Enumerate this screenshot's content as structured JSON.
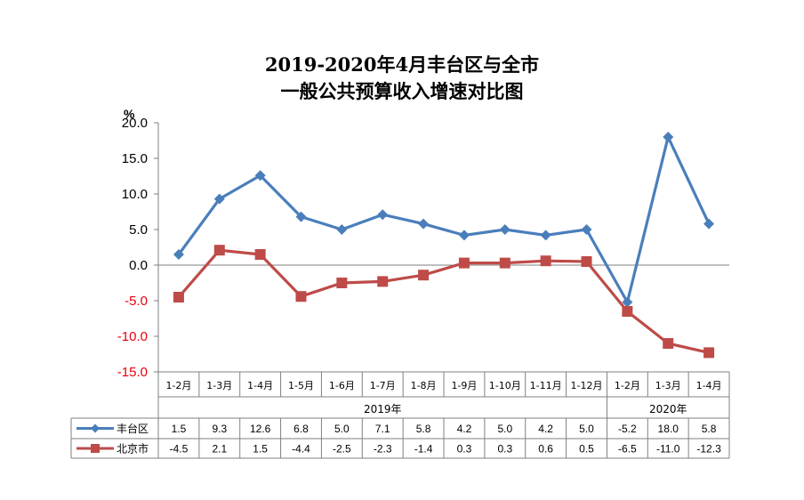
{
  "chart_data": {
    "type": "line",
    "title_line1": "2019-2020年4月丰台区与全市",
    "title_line2": "一般公共预算收入增速对比图",
    "ylabel": "%",
    "ylim": [
      -15,
      20
    ],
    "yticks": [
      "20.0",
      "15.0",
      "10.0",
      "5.0",
      "0.0",
      "-5.0",
      "-10.0",
      "-15.0"
    ],
    "categories": [
      "1-2月",
      "1-3月",
      "1-4月",
      "1-5月",
      "1-6月",
      "1-7月",
      "1-8月",
      "1-9月",
      "1-10月",
      "1-11月",
      "1-12月",
      "1-2月",
      "1-3月",
      "1-4月"
    ],
    "groups": [
      {
        "label": "2019年",
        "count": 11
      },
      {
        "label": "2020年",
        "count": 3
      }
    ],
    "series": [
      {
        "name": "丰台区",
        "color": "#4a7ebb",
        "marker": "diamond",
        "values": [
          1.5,
          9.3,
          12.6,
          6.8,
          5.0,
          7.1,
          5.8,
          4.2,
          5.0,
          4.2,
          5.0,
          -5.2,
          18.0,
          5.8
        ],
        "labels": [
          "1.5",
          "9.3",
          "12.6",
          "6.8",
          "5.0",
          "7.1",
          "5.8",
          "4.2",
          "5.0",
          "4.2",
          "5.0",
          "-5.2",
          "18.0",
          "5.8"
        ]
      },
      {
        "name": "北京市",
        "color": "#be4b48",
        "marker": "square",
        "values": [
          -4.5,
          2.1,
          1.5,
          -4.4,
          -2.5,
          -2.3,
          -1.4,
          0.3,
          0.3,
          0.6,
          0.5,
          -6.5,
          -11.0,
          -12.3
        ],
        "labels": [
          "-4.5",
          "2.1",
          "1.5",
          "-4.4",
          "-2.5",
          "-2.3",
          "-1.4",
          "0.3",
          "0.3",
          "0.6",
          "0.5",
          "-6.5",
          "-11.0",
          "-12.3"
        ]
      }
    ],
    "negative_tick_color": "#e8000b"
  }
}
